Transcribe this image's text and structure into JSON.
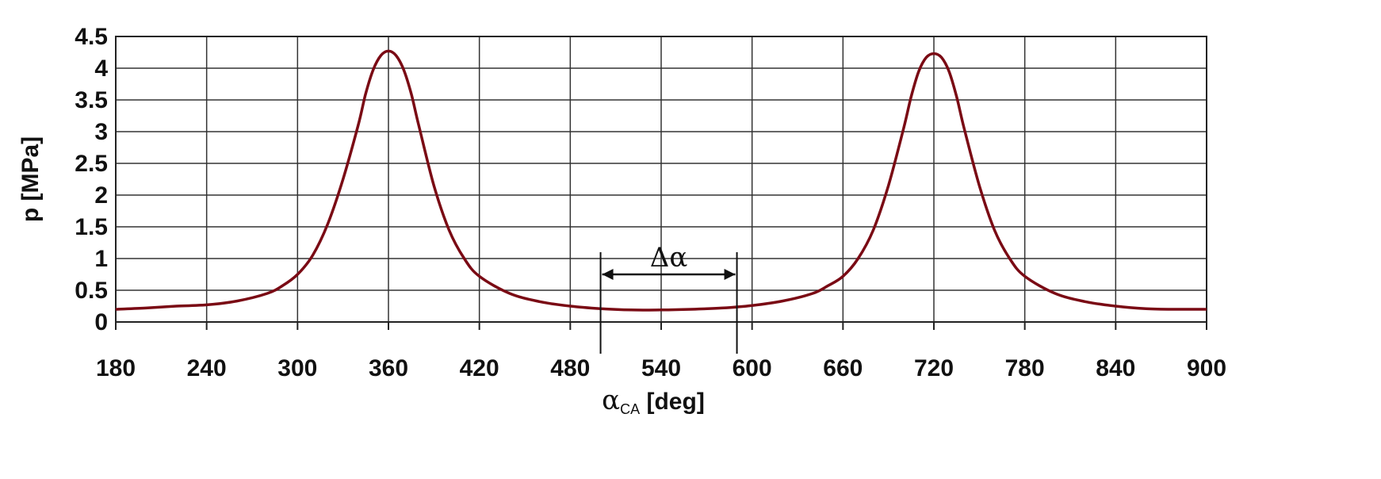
{
  "chart_data": {
    "type": "line",
    "title": "",
    "xlabel": {
      "main": "α",
      "sub": "CA",
      "rest": " [deg]"
    },
    "ylabel": "p [MPa]",
    "xlim": [
      180,
      900
    ],
    "ylim": [
      0,
      4.5
    ],
    "x_ticks": [
      180,
      240,
      300,
      360,
      420,
      480,
      540,
      600,
      660,
      720,
      780,
      840,
      900
    ],
    "y_ticks": [
      "0",
      "0.5",
      "1",
      "1.5",
      "2",
      "2.5",
      "3",
      "3.5",
      "4",
      "4.5"
    ],
    "grid": true,
    "line_color": "#7a0a14",
    "series": [
      {
        "x": [
          180,
          200,
          220,
          240,
          260,
          280,
          290,
          300,
          310,
          320,
          330,
          340,
          345,
          350,
          355,
          360,
          365,
          370,
          375,
          380,
          390,
          400,
          410,
          420,
          440,
          460,
          480,
          500,
          520,
          540,
          560,
          580,
          600,
          620,
          640,
          650,
          660,
          670,
          680,
          690,
          700,
          705,
          710,
          715,
          720,
          725,
          730,
          735,
          740,
          750,
          760,
          770,
          780,
          800,
          820,
          840,
          860,
          880,
          900
        ],
        "y": [
          0.2,
          0.22,
          0.25,
          0.27,
          0.33,
          0.45,
          0.57,
          0.75,
          1.05,
          1.55,
          2.25,
          3.1,
          3.6,
          3.98,
          4.2,
          4.27,
          4.2,
          3.98,
          3.6,
          3.1,
          2.15,
          1.45,
          1.0,
          0.72,
          0.45,
          0.32,
          0.25,
          0.21,
          0.19,
          0.19,
          0.2,
          0.22,
          0.26,
          0.33,
          0.45,
          0.57,
          0.72,
          1.0,
          1.45,
          2.15,
          3.05,
          3.55,
          3.95,
          4.17,
          4.23,
          4.17,
          3.95,
          3.55,
          3.05,
          2.15,
          1.45,
          1.0,
          0.72,
          0.45,
          0.32,
          0.25,
          0.21,
          0.2,
          0.2
        ]
      }
    ],
    "annotations": [
      {
        "label": "Δα",
        "x_from": 500,
        "x_to": 590,
        "y": 0.75
      }
    ]
  }
}
